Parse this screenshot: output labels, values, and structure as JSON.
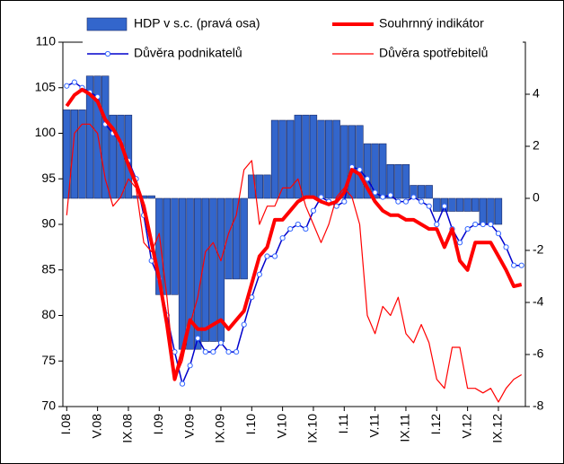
{
  "chart_data": {
    "type": "bar-line",
    "categories": [
      "I.08",
      null,
      null,
      null,
      "V.08",
      null,
      null,
      null,
      "IX.08",
      null,
      null,
      null,
      "I.09",
      null,
      null,
      null,
      "V.09",
      null,
      null,
      null,
      "IX.09",
      null,
      null,
      null,
      "I.10",
      null,
      null,
      null,
      "V.10",
      null,
      null,
      null,
      "IX.10",
      null,
      null,
      null,
      "I.11",
      null,
      null,
      null,
      "V.11",
      null,
      null,
      null,
      "IX.11",
      null,
      null,
      null,
      "I.12",
      null,
      null,
      null,
      "V.12",
      null,
      null,
      null,
      "IX.12",
      null,
      null,
      null
    ],
    "ylim": [
      70,
      110
    ],
    "yticks": [
      70,
      75,
      80,
      85,
      90,
      95,
      100,
      105,
      110
    ],
    "y2lim": [
      -8,
      6
    ],
    "y2ticks": [
      -8,
      -6,
      -4,
      -2,
      0,
      2,
      4
    ],
    "series": [
      {
        "name": "HDP v s.c. (pravá osa)",
        "kind": "bar",
        "axis": "y2",
        "color": "#3366cc",
        "values": [
          3.4,
          3.4,
          3.4,
          4.7,
          4.7,
          4.7,
          3.2,
          3.2,
          3.2,
          0.1,
          0.1,
          0.1,
          -3.7,
          -3.7,
          -3.7,
          -5.8,
          -5.8,
          -5.8,
          -5.5,
          -5.5,
          -5.5,
          -3.1,
          -3.1,
          -3.1,
          0.9,
          0.9,
          0.9,
          3.0,
          3.0,
          3.0,
          3.2,
          3.2,
          3.2,
          3.0,
          3.0,
          3.0,
          2.8,
          2.8,
          2.8,
          2.1,
          2.1,
          2.1,
          1.3,
          1.3,
          1.3,
          0.5,
          0.5,
          0.5,
          -0.5,
          -0.5,
          -0.5,
          -0.5,
          -0.5,
          -0.5,
          -1.0,
          -1.0,
          -1.0,
          null,
          null,
          null
        ]
      },
      {
        "name": "Souhrnný indikátor",
        "kind": "line",
        "color": "#ff0000",
        "width": 4,
        "values": [
          103,
          104.2,
          104.8,
          104.3,
          103.5,
          101.5,
          100.5,
          99,
          96.5,
          94.5,
          92,
          88,
          84,
          79,
          73,
          76,
          79.5,
          78.5,
          78.5,
          79,
          79.5,
          78.5,
          79.5,
          80.5,
          83.5,
          86.5,
          87.5,
          90.5,
          90.5,
          91.5,
          92.5,
          93,
          93,
          92.5,
          92.2,
          92.5,
          93.5,
          96,
          95.5,
          94,
          92.5,
          91.5,
          91,
          91,
          90.5,
          90.5,
          90,
          89.5,
          89.5,
          87.5,
          89.5,
          86,
          85,
          88,
          88,
          88,
          86.5,
          85,
          83.2,
          83.4
        ]
      },
      {
        "name": "Důvěra podnikatelů",
        "kind": "line-marker",
        "color": "#0000cc",
        "width": 1.5,
        "values": [
          105.2,
          105.6,
          105,
          104.5,
          104,
          101,
          100,
          99,
          97,
          95,
          91,
          86,
          84,
          80,
          76,
          72.5,
          74.5,
          77.5,
          76,
          76,
          77,
          76,
          76,
          79,
          82,
          84.5,
          86.5,
          86.5,
          88.5,
          89.5,
          90,
          89.5,
          91.5,
          93,
          92.5,
          92,
          92.5,
          96.3,
          96,
          95,
          93.5,
          93,
          93.2,
          92.5,
          92.5,
          93,
          92.5,
          92,
          90,
          92,
          89.5,
          88,
          89.5,
          90,
          90,
          90,
          89,
          87.5,
          85.5,
          85.5
        ]
      },
      {
        "name": "Důvěra spotřebitelů",
        "kind": "line",
        "color": "#ff0000",
        "width": 1.2,
        "values": [
          91,
          100,
          101,
          101,
          100,
          95,
          92,
          93,
          95,
          94,
          88,
          87,
          89,
          82,
          73,
          75,
          79,
          82,
          87,
          88,
          86,
          89,
          91,
          96,
          97,
          90,
          92,
          92,
          94,
          94,
          95,
          92,
          90,
          88,
          90,
          93,
          94,
          93,
          90,
          80,
          78,
          81,
          80,
          82,
          78,
          77,
          79,
          77,
          73,
          72,
          76.5,
          76.5,
          72,
          72,
          71.5,
          72,
          70.5,
          72,
          73,
          73.5
        ]
      }
    ]
  }
}
